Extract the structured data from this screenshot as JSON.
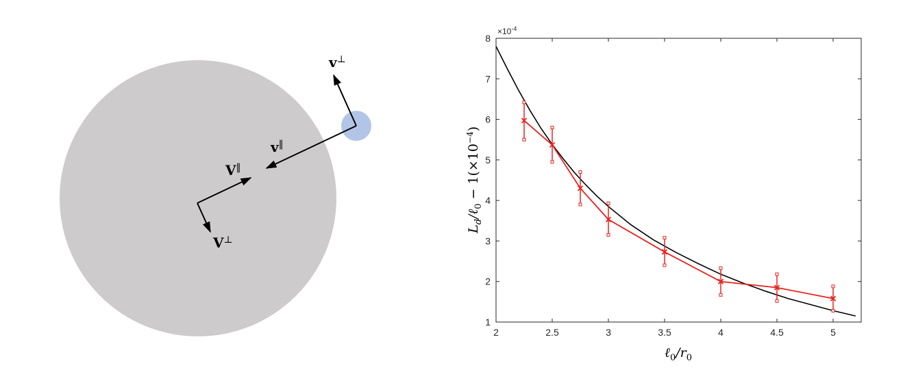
{
  "diagram": {
    "labels": {
      "v_perp": {
        "text": "v",
        "sup": "⊥"
      },
      "v_par": {
        "text": "v",
        "sup": "‖"
      },
      "V_par": {
        "text": "V",
        "sup": "‖"
      },
      "V_perp": {
        "text": "V",
        "sup": "⊥"
      }
    },
    "colors": {
      "large_disk": "#cdcbcc",
      "small_disk": "#b3c5e6",
      "arrows": "#000000"
    }
  },
  "chart_data": {
    "type": "line",
    "xlabel": "ℓ0/r0",
    "ylabel": "Ld/ℓ0 − 1(×10−4)",
    "exponent_label": "×10",
    "exponent_power": "-4",
    "xlim": [
      2,
      5.25
    ],
    "ylim": [
      1,
      8
    ],
    "xticks": [
      2,
      2.5,
      3,
      3.5,
      4,
      4.5,
      5
    ],
    "xtick_labels": [
      "2",
      "2.5",
      "3",
      "3.5",
      "4",
      "4.5",
      "5"
    ],
    "yticks": [
      1,
      2,
      3,
      4,
      5,
      6,
      7,
      8
    ],
    "ytick_labels": [
      "1",
      "2",
      "3",
      "4",
      "5",
      "6",
      "7",
      "8"
    ],
    "grid": false,
    "series": [
      {
        "kind": "theory_curve",
        "color": "#000000",
        "x": [
          2.0,
          2.1,
          2.2,
          2.3,
          2.4,
          2.5,
          2.6,
          2.7,
          2.8,
          2.9,
          3.0,
          3.2,
          3.4,
          3.6,
          3.8,
          4.0,
          4.2,
          4.4,
          4.6,
          4.8,
          5.0,
          5.2
        ],
        "y": [
          7.8,
          7.25,
          6.72,
          6.23,
          5.78,
          5.38,
          5.02,
          4.68,
          4.38,
          4.1,
          3.85,
          3.4,
          3.03,
          2.72,
          2.44,
          2.18,
          1.96,
          1.76,
          1.58,
          1.43,
          1.28,
          1.15
        ]
      },
      {
        "kind": "measured",
        "color": "#e8221c",
        "marker": "x",
        "x": [
          2.25,
          2.5,
          2.75,
          3.0,
          3.5,
          4.0,
          4.5,
          5.0
        ],
        "y": [
          5.97,
          5.37,
          4.3,
          3.53,
          2.73,
          2.0,
          1.85,
          1.58
        ],
        "err_low": [
          5.5,
          4.95,
          3.9,
          3.15,
          2.4,
          1.67,
          1.52,
          1.28
        ],
        "err_high": [
          6.42,
          5.8,
          4.7,
          3.93,
          3.08,
          2.33,
          2.18,
          1.88
        ]
      }
    ]
  }
}
